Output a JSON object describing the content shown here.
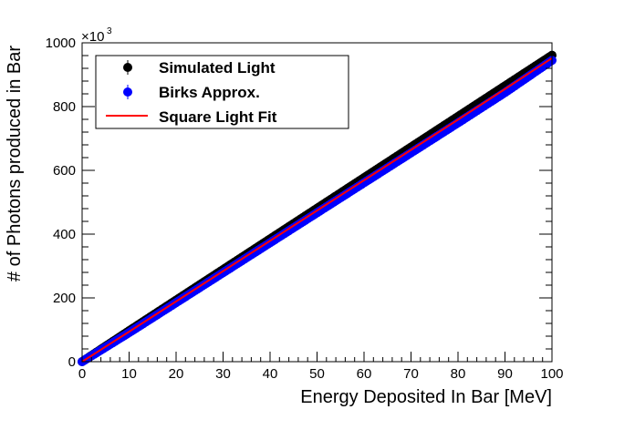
{
  "chart_data": {
    "type": "scatter",
    "title": "",
    "xlabel": "Energy Deposited In Bar [MeV]",
    "ylabel": "# of Photons produced in Bar",
    "xlim": [
      0,
      100
    ],
    "ylim": [
      0,
      1000
    ],
    "y_multiplier": {
      "base": "×10",
      "exponent": "3"
    },
    "x_ticks": [
      "0",
      "10",
      "20",
      "30",
      "40",
      "50",
      "60",
      "70",
      "80",
      "90",
      "100"
    ],
    "y_ticks": [
      "0",
      "200",
      "400",
      "600",
      "800",
      "1000"
    ],
    "grid": false,
    "legend_position": "top-left",
    "series": [
      {
        "name": "Simulated Light",
        "style": "points",
        "color": "#000000",
        "x": [
          0,
          10,
          20,
          30,
          40,
          50,
          60,
          70,
          80,
          90,
          100
        ],
        "y": [
          0,
          97,
          193,
          289,
          385,
          481,
          577,
          673,
          769,
          865,
          961
        ]
      },
      {
        "name": "Birks Approx.",
        "style": "points",
        "color": "#0000ff",
        "x": [
          0,
          10,
          20,
          30,
          40,
          50,
          60,
          70,
          80,
          90,
          100
        ],
        "y": [
          0,
          91,
          185,
          279,
          373,
          467,
          561,
          655,
          749,
          844,
          945
        ]
      },
      {
        "name": "Square Light Fit",
        "style": "line",
        "color": "#ff0000",
        "x": [
          0,
          10,
          20,
          30,
          40,
          50,
          60,
          70,
          80,
          90,
          100
        ],
        "y": [
          0,
          94,
          189,
          284,
          379,
          474,
          569,
          664,
          759,
          855,
          952
        ]
      }
    ]
  }
}
